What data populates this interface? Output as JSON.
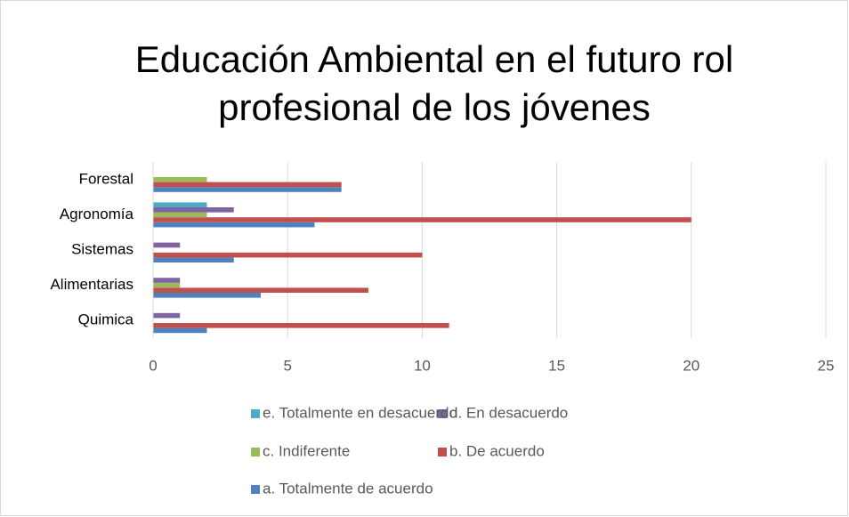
{
  "chart_data": {
    "type": "bar",
    "orientation": "horizontal",
    "title": "Educación Ambiental en el futuro rol profesional de los jóvenes",
    "categories": [
      "Quimica",
      "Alimentarias",
      "Sistemas",
      "Agronomía",
      "Forestal"
    ],
    "series": [
      {
        "name": "a. Totalmente de acuerdo",
        "color": "#4f81bd",
        "values": [
          2,
          4,
          3,
          6,
          7
        ]
      },
      {
        "name": "b. De acuerdo",
        "color": "#c0504d",
        "values": [
          11,
          8,
          10,
          20,
          7
        ]
      },
      {
        "name": "c. Indiferente",
        "color": "#9bbb59",
        "values": [
          0,
          1,
          0,
          2,
          2
        ]
      },
      {
        "name": "d. En desacuerdo",
        "color": "#8064a2",
        "values": [
          1,
          1,
          1,
          3,
          0
        ]
      },
      {
        "name": "e. Totalmente en desacuerdo",
        "color": "#4bacc6",
        "values": [
          0,
          0,
          0,
          2,
          0
        ]
      }
    ],
    "xlim": [
      0,
      25
    ],
    "xticks": [
      0,
      5,
      10,
      15,
      20,
      25
    ],
    "grid": true,
    "legend": "bottom"
  }
}
